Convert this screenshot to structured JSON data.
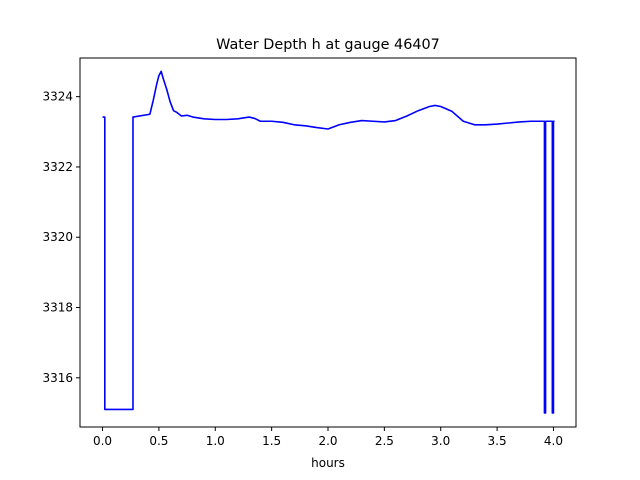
{
  "chart_data": {
    "type": "line",
    "title": "Water Depth h at gauge 46407",
    "xlabel": "hours",
    "ylabel": "",
    "xlim": [
      -0.2,
      4.2
    ],
    "ylim": [
      3314.6,
      3325.1
    ],
    "xticks": [
      0.0,
      0.5,
      1.0,
      1.5,
      2.0,
      2.5,
      3.0,
      3.5,
      4.0
    ],
    "xtick_labels": [
      "0.0",
      "0.5",
      "1.0",
      "1.5",
      "2.0",
      "2.5",
      "3.0",
      "3.5",
      "4.0"
    ],
    "yticks": [
      3316,
      3318,
      3320,
      3322,
      3324
    ],
    "ytick_labels": [
      "3316",
      "3318",
      "3320",
      "3322",
      "3324"
    ],
    "grid": false,
    "series": [
      {
        "color": "#0000ff",
        "x": [
          0.0,
          0.02,
          0.02,
          0.27,
          0.27,
          0.42,
          0.45,
          0.48,
          0.5,
          0.52,
          0.54,
          0.57,
          0.6,
          0.63,
          0.66,
          0.7,
          0.75,
          0.8,
          0.9,
          1.0,
          1.1,
          1.2,
          1.3,
          1.35,
          1.4,
          1.5,
          1.6,
          1.7,
          1.8,
          1.9,
          2.0,
          2.1,
          2.2,
          2.3,
          2.4,
          2.5,
          2.6,
          2.7,
          2.8,
          2.9,
          2.95,
          3.0,
          3.1,
          3.2,
          3.3,
          3.4,
          3.5,
          3.6,
          3.7,
          3.8,
          3.91,
          3.92,
          3.92,
          3.93,
          3.93,
          3.98,
          3.99,
          3.99,
          4.0,
          4.0,
          4.01
        ],
        "y": [
          3323.42,
          3323.42,
          3315.1,
          3315.1,
          3323.42,
          3323.5,
          3323.9,
          3324.35,
          3324.6,
          3324.72,
          3324.5,
          3324.2,
          3323.85,
          3323.6,
          3323.55,
          3323.45,
          3323.47,
          3323.42,
          3323.37,
          3323.35,
          3323.35,
          3323.37,
          3323.42,
          3323.38,
          3323.3,
          3323.3,
          3323.27,
          3323.2,
          3323.17,
          3323.12,
          3323.08,
          3323.2,
          3323.27,
          3323.32,
          3323.3,
          3323.28,
          3323.32,
          3323.45,
          3323.6,
          3323.72,
          3323.75,
          3323.72,
          3323.58,
          3323.3,
          3323.2,
          3323.2,
          3323.22,
          3323.25,
          3323.28,
          3323.3,
          3323.3,
          3323.3,
          3315.0,
          3315.0,
          3323.3,
          3323.3,
          3323.3,
          3315.0,
          3315.0,
          3323.3,
          3323.3
        ]
      }
    ]
  }
}
